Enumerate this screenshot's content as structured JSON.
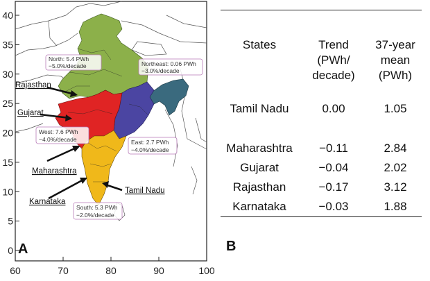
{
  "map": {
    "panel_label": "A",
    "y_ticks": [
      "0",
      "5",
      "10",
      "15",
      "20",
      "25",
      "30",
      "35",
      "40"
    ],
    "x_ticks": [
      "60",
      "70",
      "80",
      "90",
      "100"
    ],
    "regions": [
      {
        "name": "North",
        "line1": "North: 5.4 PWh",
        "line2": "−5.0%/decade",
        "color": "#8cb04a"
      },
      {
        "name": "Northeast",
        "line1": "Northeast: 0.06 PWh",
        "line2": "−3.0%/decade",
        "color": "#3a6a7e"
      },
      {
        "name": "West",
        "line1": "West: 7.6 PWh",
        "line2": "−4.0%/decade",
        "color": "#e02424"
      },
      {
        "name": "East",
        "line1": "East: 2.7 PWh",
        "line2": "−4.0%/decade",
        "color": "#4b45a2"
      },
      {
        "name": "South",
        "line1": "South: 5.3 PWh",
        "line2": "−2.0%/decade",
        "color": "#f0b81a"
      }
    ],
    "state_labels": {
      "rajasthan": "Rajasthan",
      "gujarat": "Gujarat",
      "maharashtra": "Maharashtra",
      "karnataka": "Karnataka",
      "tamil_nadu": "Tamil Nadu"
    }
  },
  "table": {
    "panel_label": "B",
    "headers": [
      "States",
      "Trend\n(PWh/\ndecade)",
      "37-year\nmean\n(PWh)"
    ],
    "rows": [
      {
        "state": "Tamil Nadu",
        "trend": "0.00",
        "mean": "1.05"
      },
      {
        "state": "Maharashtra",
        "trend": "−0.11",
        "mean": "2.84"
      },
      {
        "state": "Gujarat",
        "trend": "−0.04",
        "mean": "2.02"
      },
      {
        "state": "Rajasthan",
        "trend": "−0.17",
        "mean": "3.12"
      },
      {
        "state": "Karnataka",
        "trend": "−0.03",
        "mean": "1.88"
      }
    ]
  }
}
